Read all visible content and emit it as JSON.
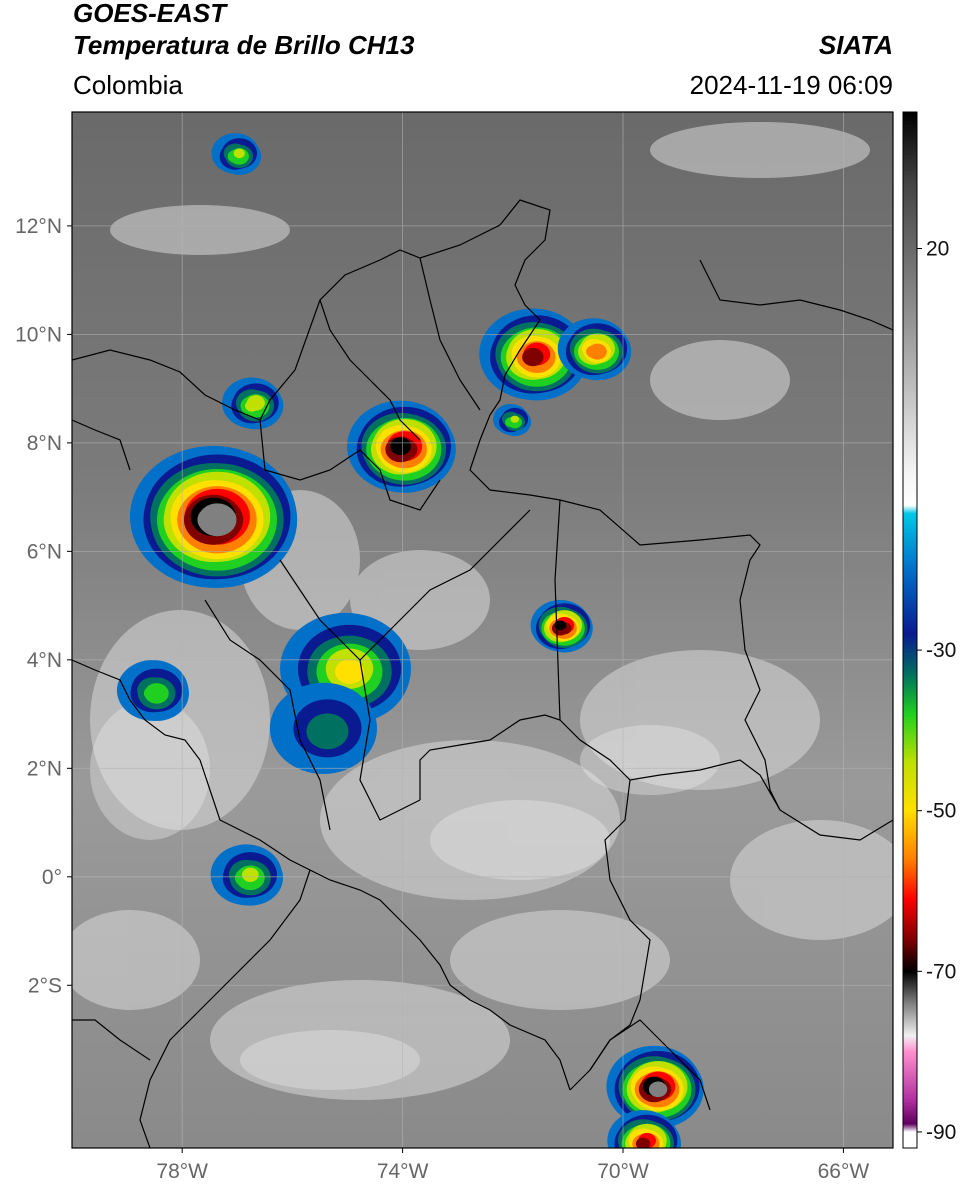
{
  "header": {
    "satellite": "GOES-EAST",
    "product": "Temperatura de Brillo CH13",
    "brand": "SIATA",
    "region": "Colombia",
    "timestamp": "2024-11-19 06:09"
  },
  "map": {
    "lon_range": [
      -80,
      -65.1
    ],
    "lat_range": [
      -5,
      14.1
    ],
    "lat_ticks": [
      {
        "value": 12,
        "label": "12°N"
      },
      {
        "value": 10,
        "label": "10°N"
      },
      {
        "value": 8,
        "label": "8°N"
      },
      {
        "value": 6,
        "label": "6°N"
      },
      {
        "value": 4,
        "label": "4°N"
      },
      {
        "value": 2,
        "label": "2°N"
      },
      {
        "value": 0,
        "label": "0°"
      },
      {
        "value": -2,
        "label": "2°S"
      }
    ],
    "lon_ticks": [
      {
        "value": -78,
        "label": "78°W"
      },
      {
        "value": -74,
        "label": "74°W"
      },
      {
        "value": -70,
        "label": "70°W"
      },
      {
        "value": -66,
        "label": "66°W"
      }
    ],
    "gridlines": true
  },
  "colorbar": {
    "range": [
      -92,
      37
    ],
    "ticks": [
      {
        "value": 20,
        "label": "20"
      },
      {
        "value": -30,
        "label": "-30"
      },
      {
        "value": -50,
        "label": "-50"
      },
      {
        "value": -70,
        "label": "-70"
      },
      {
        "value": -90,
        "label": "-90"
      }
    ],
    "stops": [
      {
        "v": 37,
        "c": "#000000"
      },
      {
        "v": 28,
        "c": "#444444"
      },
      {
        "v": 10,
        "c": "#999999"
      },
      {
        "v": -8,
        "c": "#f5f5f5"
      },
      {
        "v": -12,
        "c": "#ffffff"
      },
      {
        "v": -13,
        "c": "#00c8e6"
      },
      {
        "v": -20,
        "c": "#0070c8"
      },
      {
        "v": -28,
        "c": "#0a1a90"
      },
      {
        "v": -33,
        "c": "#007060"
      },
      {
        "v": -38,
        "c": "#20d020"
      },
      {
        "v": -44,
        "c": "#c0e000"
      },
      {
        "v": -50,
        "c": "#ffe000"
      },
      {
        "v": -56,
        "c": "#ff8000"
      },
      {
        "v": -61,
        "c": "#ff0000"
      },
      {
        "v": -66,
        "c": "#800000"
      },
      {
        "v": -70,
        "c": "#000000"
      },
      {
        "v": -74,
        "c": "#808080"
      },
      {
        "v": -78,
        "c": "#f0f0f0"
      },
      {
        "v": -80,
        "c": "#ff90d0"
      },
      {
        "v": -86,
        "c": "#b030a0"
      },
      {
        "v": -89,
        "c": "#600060"
      },
      {
        "v": -90,
        "c": "#ffffff"
      },
      {
        "v": -92,
        "c": "#ffffff"
      }
    ]
  },
  "storms": [
    {
      "lon": -77.4,
      "lat": 6.6,
      "r": 1.4,
      "min_t": -75
    },
    {
      "lon": -74.0,
      "lat": 7.9,
      "r": 0.9,
      "min_t": -68
    },
    {
      "lon": -71.6,
      "lat": 9.6,
      "r": 0.9,
      "min_t": -64
    },
    {
      "lon": -70.5,
      "lat": 9.7,
      "r": 0.6,
      "min_t": -58
    },
    {
      "lon": -71.1,
      "lat": 4.6,
      "r": 0.5,
      "min_t": -68
    },
    {
      "lon": -75.0,
      "lat": 3.8,
      "r": 1.1,
      "min_t": -48
    },
    {
      "lon": -75.4,
      "lat": 2.7,
      "r": 0.9,
      "min_t": -34
    },
    {
      "lon": -76.8,
      "lat": 0.0,
      "r": 0.6,
      "min_t": -42
    },
    {
      "lon": -78.5,
      "lat": 3.4,
      "r": 0.6,
      "min_t": -40
    },
    {
      "lon": -69.4,
      "lat": -3.9,
      "r": 0.8,
      "min_t": -72
    },
    {
      "lon": -69.6,
      "lat": -4.9,
      "r": 0.6,
      "min_t": -62
    },
    {
      "lon": -76.7,
      "lat": 8.7,
      "r": 0.5,
      "min_t": -45
    },
    {
      "lon": -77.0,
      "lat": 13.3,
      "r": 0.4,
      "min_t": -42
    },
    {
      "lon": -72.0,
      "lat": 8.4,
      "r": 0.3,
      "min_t": -42
    }
  ]
}
